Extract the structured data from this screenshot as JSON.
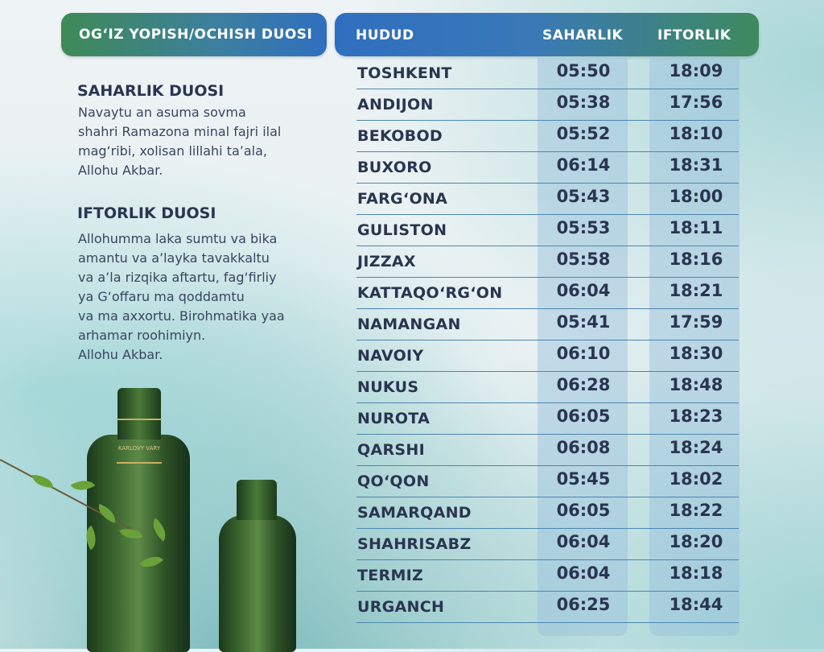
{
  "header": {
    "left_title": "OG‘IZ YOPISH/OCHISH DUOSI",
    "col_region": "HUDUD",
    "col_suhoor": "SAHARLIK",
    "col_iftar": "IFTORLIK"
  },
  "duas": {
    "suhoor_title": "SAHARLIK DUOSI",
    "suhoor_text": "Navaytu an asuma sovma\nshahri Ramazona minal fajri ilal\nmag‘ribi, xolisan lillahi ta’ala,\nAllohu Akbar.",
    "iftar_title": "IFTORLIK DUOSI",
    "iftar_text": "Allohumma laka sumtu va bika\namantu va a’layka tavakkaltu\nva a’la rizqika aftartu, fag‘firliy\nya G‘offaru ma qoddamtu\nva ma axxortu. Birohmatika yaa\narhamar roohimiyn.\nAllohu Akbar."
  },
  "rows": [
    {
      "city": "TOSHKENT",
      "suhoor": "05:50",
      "iftar": "18:09"
    },
    {
      "city": "ANDIJON",
      "suhoor": "05:38",
      "iftar": "17:56"
    },
    {
      "city": "BEKOBOD",
      "suhoor": "05:52",
      "iftar": "18:10"
    },
    {
      "city": "BUXORO",
      "suhoor": "06:14",
      "iftar": "18:31"
    },
    {
      "city": "FARG‘ONA",
      "suhoor": "05:43",
      "iftar": "18:00"
    },
    {
      "city": "GULISTON",
      "suhoor": "05:53",
      "iftar": "18:11"
    },
    {
      "city": "JIZZAX",
      "suhoor": "05:58",
      "iftar": "18:16"
    },
    {
      "city": "KATTAQO‘RG‘ON",
      "suhoor": "06:04",
      "iftar": "18:21"
    },
    {
      "city": "NAMANGAN",
      "suhoor": "05:41",
      "iftar": "17:59"
    },
    {
      "city": "NAVOIY",
      "suhoor": "06:10",
      "iftar": "18:30"
    },
    {
      "city": "NUKUS",
      "suhoor": "06:28",
      "iftar": "18:48"
    },
    {
      "city": "NUROTA",
      "suhoor": "06:05",
      "iftar": "18:23"
    },
    {
      "city": "QARSHI",
      "suhoor": "06:08",
      "iftar": "18:24"
    },
    {
      "city": "QO‘QON",
      "suhoor": "05:45",
      "iftar": "18:02"
    },
    {
      "city": "SAMARQAND",
      "suhoor": "06:05",
      "iftar": "18:22"
    },
    {
      "city": "SHAHRISABZ",
      "suhoor": "06:04",
      "iftar": "18:20"
    },
    {
      "city": "TERMIZ",
      "suhoor": "06:04",
      "iftar": "18:18"
    },
    {
      "city": "URGANCH",
      "suhoor": "06:25",
      "iftar": "18:44"
    }
  ],
  "brand": {
    "label_text": "KARLOVY VARY"
  },
  "colors": {
    "accent_blue": "#2f6fbf",
    "accent_green": "#3e8a5e",
    "text_dark": "#2a3550"
  }
}
